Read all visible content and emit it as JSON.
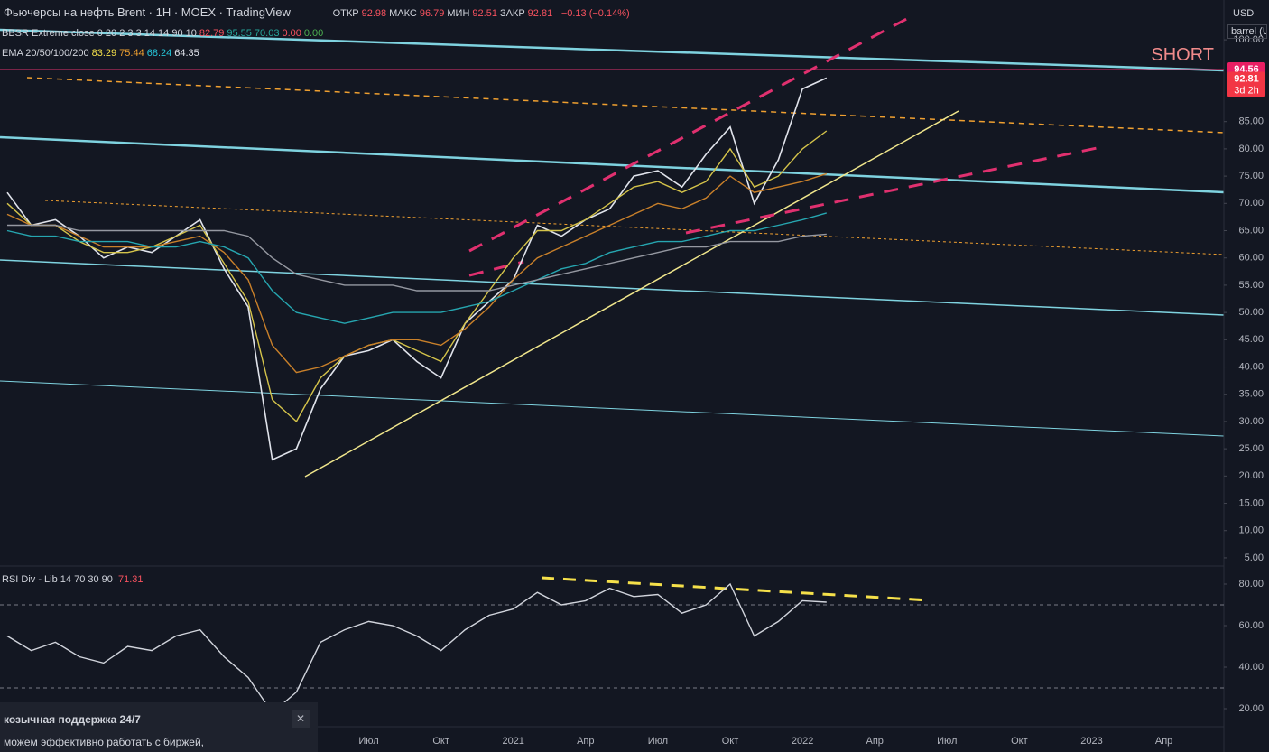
{
  "header": {
    "symbol": "Фьючерсы на нефть Brent · 1H · MOEX · TradingView",
    "ohlc": [
      {
        "label": "ОТКР",
        "value": "92.98"
      },
      {
        "label": "МАКС",
        "value": "96.79"
      },
      {
        "label": "МИН",
        "value": "92.51"
      },
      {
        "label": "ЗАКР",
        "value": "92.81"
      }
    ],
    "change": "−0.13 (−0.14%)",
    "indicators": [
      {
        "name": "BBSR Extreme close 0 20 2 3 3 14 14 90 10",
        "values": [
          "82.79",
          "95.55",
          "70.03",
          "0.00",
          "0.00"
        ]
      },
      {
        "name": "EMA 20/50/100/200",
        "values": [
          "83.29",
          "75.44",
          "68.24",
          "64.35"
        ]
      }
    ],
    "currency": "USD",
    "unit": "barrel (U"
  },
  "popup": {
    "title": "козычная поддержка 24/7",
    "text": "можем эффективно работать с биржей,"
  },
  "chart_data": [
    {
      "type": "line",
      "categories": [
        null,
        null,
        null,
        null,
        null,
        null,
        null,
        null,
        null,
        null,
        null,
        null,
        null,
        null,
        null,
        "Июл",
        null,
        null,
        "Окт",
        null,
        null,
        "2021",
        null,
        null,
        "Апр",
        null,
        null,
        "Июл",
        null,
        null,
        "Окт",
        null,
        null,
        "2022",
        null,
        null,
        "Апр",
        null,
        null,
        "Июл",
        null,
        null,
        "Окт",
        null,
        null,
        "2023",
        null,
        null,
        "Апр",
        null
      ],
      "series": [
        {
          "color": "#e0e3eb",
          "values": [
            72,
            66,
            67,
            64,
            60,
            62,
            61,
            64,
            67,
            58,
            51,
            23,
            25,
            36,
            42,
            43,
            45,
            41,
            38,
            48,
            52,
            56,
            66,
            64,
            67,
            69,
            75,
            76,
            73,
            79,
            84,
            70,
            78,
            91,
            93,
            null,
            null,
            null,
            null,
            null,
            null,
            null,
            null,
            null,
            null,
            null,
            null,
            null,
            null,
            null
          ]
        },
        {
          "color": "#d4c34a",
          "values": [
            70,
            66,
            66,
            63,
            61,
            61,
            62,
            64,
            66,
            59,
            52,
            34,
            30,
            38,
            42,
            44,
            45,
            43,
            41,
            48,
            54,
            60,
            65,
            65,
            67,
            70,
            73,
            74,
            72,
            74,
            80,
            73,
            75,
            80,
            83.29,
            null,
            null,
            null,
            null,
            null,
            null,
            null,
            null,
            null,
            null,
            null,
            null,
            null,
            null,
            null
          ]
        },
        {
          "color": "#c9802a",
          "values": [
            68,
            66,
            66,
            64,
            62,
            62,
            62,
            63,
            64,
            61,
            56,
            44,
            39,
            40,
            42,
            44,
            45,
            45,
            44,
            47,
            51,
            56,
            60,
            62,
            64,
            66,
            68,
            70,
            69,
            71,
            75,
            72,
            73,
            74,
            75.44,
            null,
            null,
            null,
            null,
            null,
            null,
            null,
            null,
            null,
            null,
            null,
            null,
            null,
            null,
            null
          ]
        },
        {
          "color": "#26a6b0",
          "values": [
            65,
            64,
            64,
            63,
            63,
            63,
            62,
            62,
            63,
            62,
            60,
            54,
            50,
            49,
            48,
            49,
            50,
            50,
            50,
            51,
            52,
            54,
            56,
            58,
            59,
            61,
            62,
            63,
            63,
            64,
            65,
            65,
            66,
            67,
            68.24,
            null,
            null,
            null,
            null,
            null,
            null,
            null,
            null,
            null,
            null,
            null,
            null,
            null,
            null,
            null
          ]
        },
        {
          "color": "#9598a1",
          "values": [
            66,
            66,
            66,
            65,
            65,
            65,
            65,
            65,
            65,
            65,
            64,
            60,
            57,
            56,
            55,
            55,
            55,
            54,
            54,
            54,
            54,
            55,
            56,
            57,
            58,
            59,
            60,
            61,
            62,
            62,
            63,
            63,
            63,
            64,
            64.35,
            null,
            null,
            null,
            null,
            null,
            null,
            null,
            null,
            null,
            null,
            null,
            null,
            null,
            null,
            null
          ]
        }
      ],
      "ylim": [
        3.5,
        107.3
      ],
      "yticks": [
        {
          "value": 100,
          "label": "100.00"
        },
        {
          "value": 85,
          "label": "85.00"
        },
        {
          "value": 80,
          "label": "80.00"
        },
        {
          "value": 75,
          "label": "75.00"
        },
        {
          "value": 70,
          "label": "70.00"
        },
        {
          "value": 65,
          "label": "65.00"
        },
        {
          "value": 60,
          "label": "60.00"
        },
        {
          "value": 55,
          "label": "55.00"
        },
        {
          "value": 50,
          "label": "50.00"
        },
        {
          "value": 45,
          "label": "45.00"
        },
        {
          "value": 40,
          "label": "40.00"
        },
        {
          "value": 35,
          "label": "35.00"
        },
        {
          "value": 30,
          "label": "30.00"
        },
        {
          "value": 25,
          "label": "25.00"
        },
        {
          "value": 20,
          "label": "20.00"
        },
        {
          "value": 15,
          "label": "15.00"
        },
        {
          "value": 10,
          "label": "10.00"
        },
        {
          "value": 5,
          "label": "5.00"
        }
      ],
      "level": 94.56,
      "last_value": 92.81,
      "countdown": "3d 2h",
      "annotation": "SHORT"
    },
    {
      "type": "line",
      "title": "RSI Div - Lib 14 70 30 90",
      "last_label": "71.31",
      "series": [
        {
          "color": "#d1d4dc",
          "values": [
            55,
            48,
            52,
            45,
            42,
            50,
            48,
            55,
            58,
            45,
            35,
            18,
            28,
            52,
            58,
            62,
            60,
            55,
            48,
            58,
            65,
            68,
            76,
            70,
            72,
            78,
            74,
            75,
            66,
            70,
            80,
            55,
            62,
            72,
            71.31,
            null,
            null,
            null,
            null,
            null,
            null,
            null,
            null,
            null,
            null,
            null,
            null,
            null,
            null,
            null
          ]
        }
      ],
      "ylim": [
        11.3,
        88.7
      ],
      "yticks": [
        {
          "value": 80,
          "label": "80.00"
        },
        {
          "value": 60,
          "label": "60.00"
        },
        {
          "value": 40,
          "label": "40.00"
        },
        {
          "value": 20,
          "label": "20.00"
        }
      ],
      "levels": [
        70,
        30
      ]
    }
  ]
}
